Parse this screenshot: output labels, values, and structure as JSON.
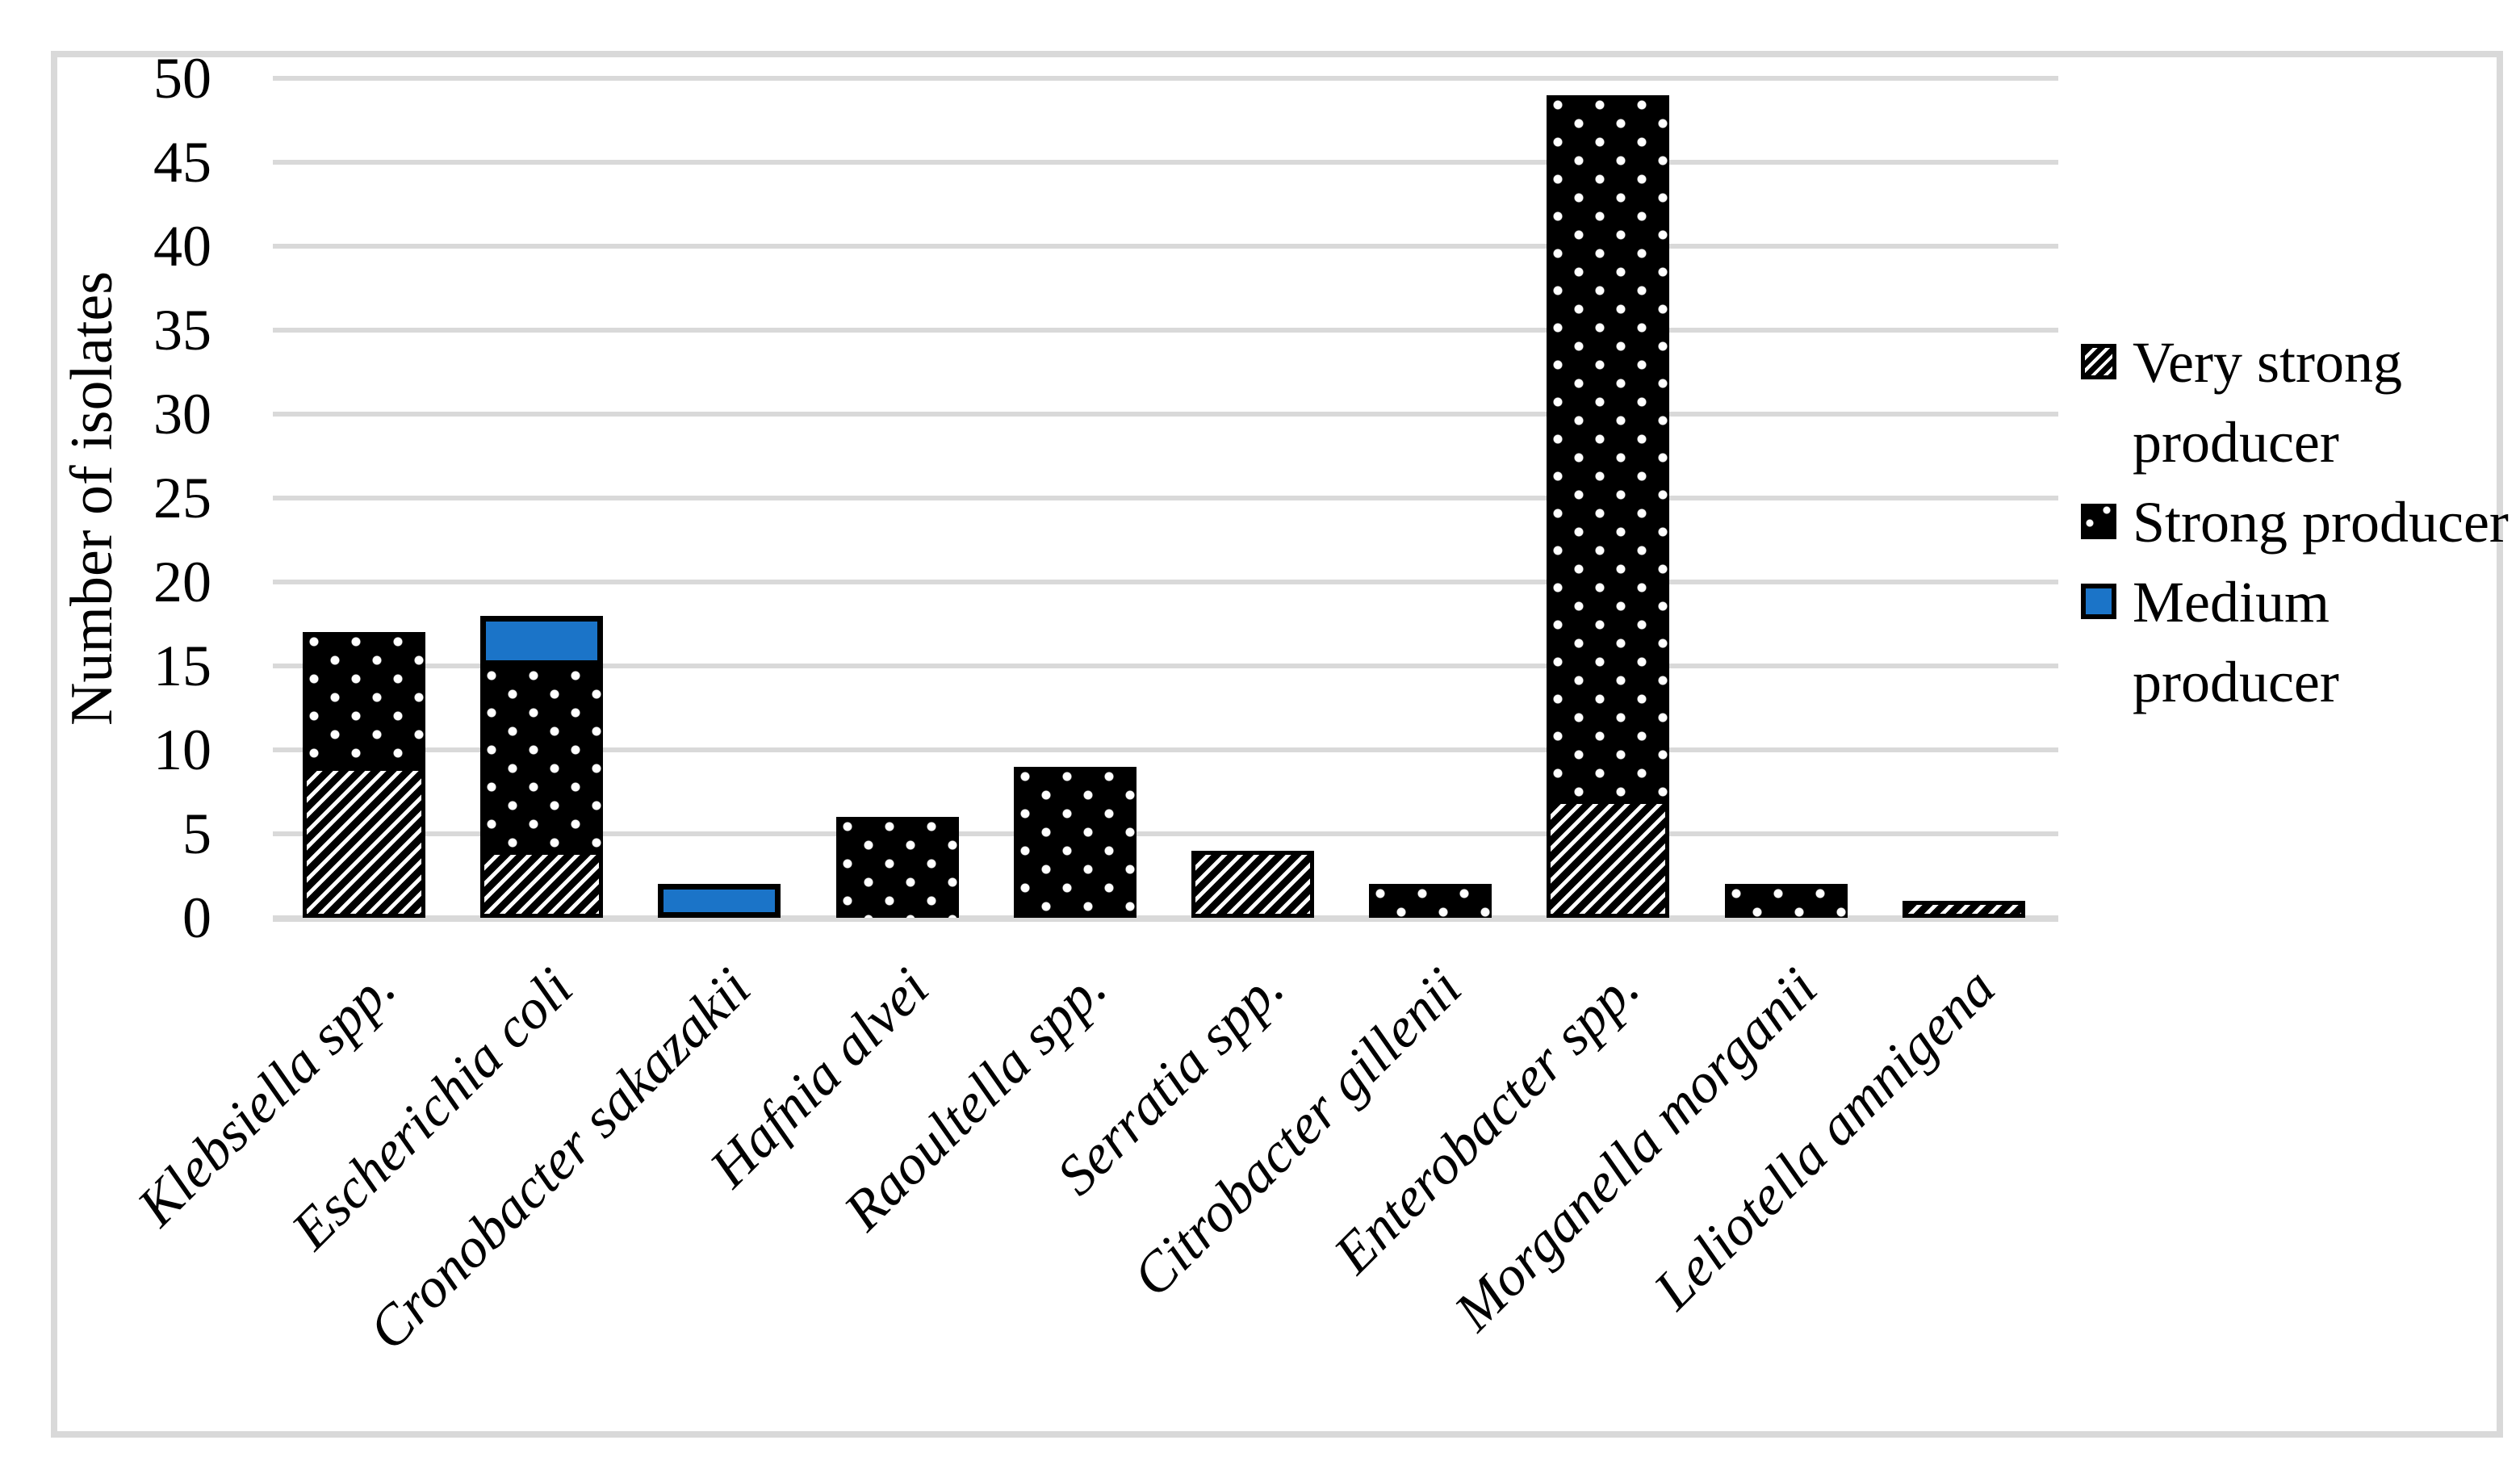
{
  "figure": {
    "border_color": "#d9d9d9",
    "background_color": "#ffffff",
    "gridline_color": "#d9d9d9",
    "text_color": "#000000",
    "accent_blue": "#1b74c8"
  },
  "chart_data": {
    "type": "bar",
    "stacked": true,
    "title": "",
    "xlabel": "",
    "ylabel": "Number of isolates",
    "ylim": [
      0,
      50
    ],
    "yticks": [
      0,
      5,
      10,
      15,
      20,
      25,
      30,
      35,
      40,
      45,
      50
    ],
    "grid": "horizontal",
    "legend_position": "right",
    "categories": [
      "Klebsiella spp.",
      "Escherichia coli",
      "Cronobacter sakazakii",
      "Hafnia alvei",
      "Raoultella spp.",
      "Serratia spp.",
      "Citrobacter gillenii",
      "Enterobacter spp.",
      "Morganella morganii",
      "Leliotella amnigena"
    ],
    "series": [
      {
        "name": "Very strong producer",
        "pattern": "diagonal-hatch",
        "color": "#000000",
        "values": [
          9,
          4,
          0,
          0,
          0,
          4,
          0,
          7,
          0,
          1
        ]
      },
      {
        "name": "Strong producer",
        "pattern": "white-dots-on-black",
        "color": "#000000",
        "values": [
          8,
          11,
          0,
          6,
          9,
          0,
          2,
          42,
          2,
          0
        ]
      },
      {
        "name": "Medium producer",
        "pattern": "solid",
        "color": "#1b74c8",
        "values": [
          0,
          3,
          2,
          0,
          0,
          0,
          0,
          0,
          0,
          0
        ]
      }
    ],
    "totals": [
      17,
      18,
      2,
      6,
      9,
      4,
      2,
      49,
      2,
      1
    ]
  },
  "legend": {
    "items": [
      {
        "label": "Very strong producer",
        "pattern": "diagonal-hatch"
      },
      {
        "label": "Strong producer",
        "pattern": "white-dots-on-black"
      },
      {
        "label": "Medium producer",
        "pattern": "solid"
      }
    ]
  }
}
